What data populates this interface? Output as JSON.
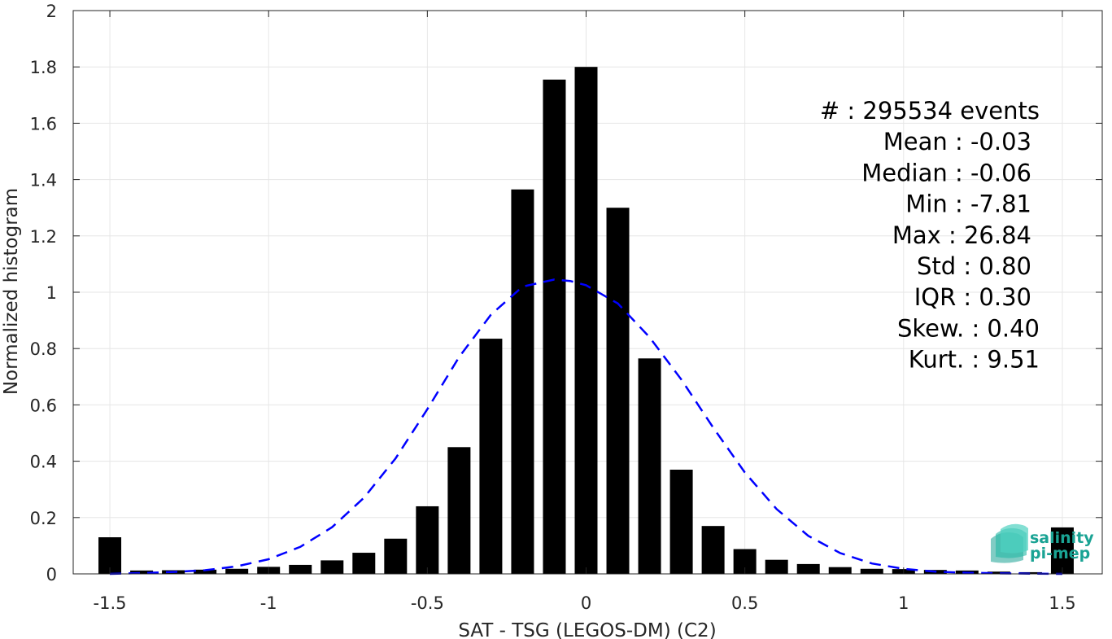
{
  "chart_data": {
    "type": "bar",
    "xlabel": "SAT - TSG (LEGOS-DM) (C2)",
    "ylabel": "Normalized histogram",
    "xlim": [
      -1.55,
      1.55
    ],
    "ylim": [
      0,
      2
    ],
    "x_ticks": [
      "-1.5",
      "-1",
      "-0.5",
      "0",
      "0.5",
      "1",
      "1.5"
    ],
    "y_ticks": [
      "0",
      "0.2",
      "0.4",
      "0.6",
      "0.8",
      "1",
      "1.2",
      "1.4",
      "1.6",
      "1.8",
      "2"
    ],
    "grid": true,
    "bar_color": "#000000",
    "fit_color": "#0000ff",
    "bars": {
      "x": [
        -1.5,
        -1.4,
        -1.3,
        -1.2,
        -1.1,
        -1.0,
        -0.9,
        -0.8,
        -0.7,
        -0.6,
        -0.5,
        -0.4,
        -0.3,
        -0.2,
        -0.1,
        0.0,
        0.1,
        0.2,
        0.3,
        0.4,
        0.5,
        0.6,
        0.7,
        0.8,
        0.9,
        1.0,
        1.1,
        1.2,
        1.3,
        1.4,
        1.5
      ],
      "values": [
        0.13,
        0.012,
        0.013,
        0.015,
        0.018,
        0.025,
        0.032,
        0.048,
        0.075,
        0.125,
        0.24,
        0.45,
        0.835,
        1.365,
        1.755,
        1.8,
        1.3,
        0.765,
        0.37,
        0.17,
        0.088,
        0.05,
        0.035,
        0.024,
        0.018,
        0.017,
        0.014,
        0.012,
        0.008,
        0.006,
        0.165
      ]
    },
    "fit_curve": {
      "style": "dashed",
      "x": [
        -1.5,
        -1.4,
        -1.3,
        -1.2,
        -1.1,
        -1.0,
        -0.9,
        -0.8,
        -0.7,
        -0.6,
        -0.5,
        -0.4,
        -0.3,
        -0.2,
        -0.1,
        -0.05,
        0.0,
        0.1,
        0.2,
        0.3,
        0.4,
        0.5,
        0.6,
        0.7,
        0.8,
        0.9,
        1.0,
        1.1,
        1.2,
        1.3,
        1.4,
        1.5
      ],
      "y": [
        0.0,
        0.003,
        0.007,
        0.013,
        0.027,
        0.052,
        0.096,
        0.166,
        0.27,
        0.41,
        0.585,
        0.77,
        0.92,
        1.02,
        1.045,
        1.04,
        1.025,
        0.96,
        0.84,
        0.69,
        0.52,
        0.36,
        0.23,
        0.135,
        0.074,
        0.037,
        0.018,
        0.008,
        0.004,
        0.002,
        0.001,
        0.0
      ]
    },
    "stats": [
      {
        "label": "#  :",
        "value": "295534 events"
      },
      {
        "label": "Mean :",
        "value": "-0.03"
      },
      {
        "label": "Median :",
        "value": "-0.06"
      },
      {
        "label": "Min :",
        "value": "-7.81"
      },
      {
        "label": "Max :",
        "value": "26.84"
      },
      {
        "label": "Std :",
        "value": "0.80"
      },
      {
        "label": "IQR :",
        "value": "0.30"
      },
      {
        "label": "Skew. :",
        "value": "0.40"
      },
      {
        "label": "Kurt. :",
        "value": "9.51"
      }
    ]
  },
  "logo": {
    "line1": "salinity",
    "line2": "pi-mep",
    "color": "#1aa394"
  }
}
